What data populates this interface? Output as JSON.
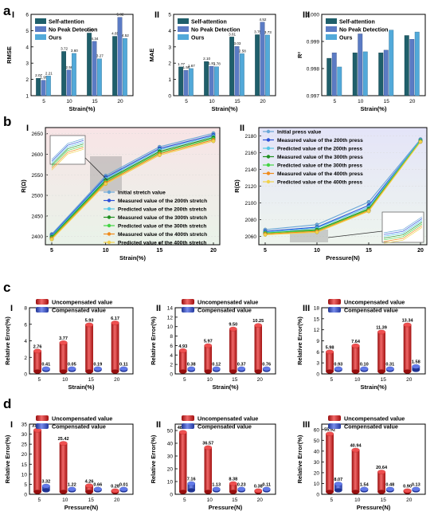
{
  "panel_letters": [
    "a",
    "b",
    "c",
    "d"
  ],
  "colors": {
    "self_attention": "#1f5f6b",
    "no_peak": "#5b7bc4",
    "ours": "#52a9d9",
    "uncomp": "#e81616",
    "comp": "#2f4ee0",
    "stretch_series": [
      "#6aa7d8",
      "#2b4fd8",
      "#55c7e6",
      "#1f8f1f",
      "#44d444",
      "#f08a1a",
      "#f2d24a"
    ],
    "b1_bg_top": "#f8e4e6",
    "b1_bg_bottom": "#e9f3e9",
    "b2_bg_top": "#e4e4f8",
    "b2_bg_bottom": "#eef5ee"
  },
  "chart_data": [
    {
      "id": "a1",
      "type": "bar",
      "roman": "I",
      "categories": [
        "5",
        "10",
        "15",
        "20"
      ],
      "series": [
        {
          "name": "Self-attention",
          "values": [
            2.07,
            3.72,
            4.85,
            4.65
          ]
        },
        {
          "name": "No Peak Detection",
          "values": [
            1.95,
            2.58,
            4.34,
            5.82
          ]
        },
        {
          "name": "Ours",
          "values": [
            2.21,
            3.6,
            3.27,
            4.52
          ]
        }
      ],
      "labels": [
        [
          "2.07",
          "1.95",
          "2.21"
        ],
        [
          "3.72",
          "2.58",
          "3.60"
        ],
        [
          "4.85",
          "4.34",
          "3.27"
        ],
        [
          "4.65",
          "5.82",
          "4.52"
        ]
      ],
      "xlabel": "Strain(%)",
      "ylabel": "RMSE",
      "ylim": [
        1,
        6
      ],
      "yticks": [
        "1",
        "2",
        "3",
        "4",
        "5",
        "6"
      ]
    },
    {
      "id": "a2",
      "type": "bar",
      "roman": "II",
      "categories": [
        "5",
        "10",
        "15",
        "20"
      ],
      "series": [
        {
          "name": "Self-attention",
          "values": [
            1.77,
            2.1,
            3.61,
            3.75
          ]
        },
        {
          "name": "No Peak Detection",
          "values": [
            1.56,
            1.81,
            3.03,
            4.52
          ]
        },
        {
          "name": "Ours",
          "values": [
            1.67,
            1.78,
            2.58,
            3.73
          ]
        }
      ],
      "labels": [
        [
          "1.77",
          "1.56",
          "1.67"
        ],
        [
          "2.10",
          "1.81",
          "1.78"
        ],
        [
          "3.61",
          "3.03",
          "2.58"
        ],
        [
          "3.75",
          "4.52",
          "3.73"
        ]
      ],
      "xlabel": "Strain(%)",
      "ylabel": "MAE",
      "ylim": [
        0,
        5
      ],
      "yticks": [
        "0",
        "1",
        "2",
        "3",
        "4",
        "5"
      ]
    },
    {
      "id": "a3",
      "type": "bar",
      "roman": "III",
      "categories": [
        "5",
        "10",
        "15",
        "20"
      ],
      "series": [
        {
          "name": "Self-attention",
          "values": [
            0.99838,
            0.99858,
            0.99858,
            0.99922
          ]
        },
        {
          "name": "No Peak Detection",
          "values": [
            0.99858,
            0.99928,
            0.99868,
            0.99908
          ]
        },
        {
          "name": "Ours",
          "values": [
            0.99806,
            0.99862,
            0.99942,
            0.99935
          ]
        }
      ],
      "xlabel": "Strain(%)",
      "ylabel": "R²",
      "ylim": [
        0.997,
        1.0
      ],
      "yticks": [
        "0.997",
        "0.998",
        "0.999",
        "1.000"
      ]
    },
    {
      "id": "b1",
      "type": "line",
      "roman": "I",
      "x": [
        5,
        10,
        15,
        20
      ],
      "xticks": [
        "5",
        "10",
        "15",
        "20"
      ],
      "series": [
        {
          "name": "Initial stretch value",
          "values": [
            2406,
            2548,
            2618,
            2651
          ]
        },
        {
          "name": "Measured value of the 200th stretch",
          "values": [
            2403,
            2544,
            2614,
            2647
          ]
        },
        {
          "name": "Predicted value of the 200th stretch",
          "values": [
            2401,
            2541,
            2611,
            2644
          ]
        },
        {
          "name": "Measured value of the 300th stretch",
          "values": [
            2399,
            2537,
            2607,
            2641
          ]
        },
        {
          "name": "Predicted value of the 300th stretch",
          "values": [
            2397,
            2534,
            2604,
            2638
          ]
        },
        {
          "name": "Measured value of the 400th stretch",
          "values": [
            2395,
            2531,
            2601,
            2635
          ]
        },
        {
          "name": "Predicted value of the 400th stretch",
          "values": [
            2393,
            2528,
            2598,
            2632
          ]
        }
      ],
      "xlabel": "Strain(%)",
      "ylabel": "R(Ω)",
      "ylim": [
        2380,
        2665
      ],
      "yticks": [
        2400,
        2450,
        2500,
        2550,
        2600,
        2650
      ]
    },
    {
      "id": "b2",
      "type": "line",
      "roman": "II",
      "x": [
        5,
        10,
        15,
        20
      ],
      "xticks": [
        "5",
        "10",
        "15",
        "20"
      ],
      "series": [
        {
          "name": "Initial press value",
          "values": [
            2068,
            2074,
            2101,
            2176
          ]
        },
        {
          "name": "Measured value of the 200th press",
          "values": [
            2066,
            2071,
            2097,
            2175
          ]
        },
        {
          "name": "Predicted value of the 200th press",
          "values": [
            2065,
            2070,
            2095,
            2175
          ]
        },
        {
          "name": "Measured value of the 300th press",
          "values": [
            2064,
            2068,
            2093,
            2174
          ]
        },
        {
          "name": "Predicted value of the 300th press",
          "values": [
            2064,
            2067,
            2092,
            2174
          ]
        },
        {
          "name": "Measured value of the 400th press",
          "values": [
            2063,
            2066,
            2091,
            2173
          ]
        },
        {
          "name": "Predicted value of the 400th press",
          "values": [
            2062,
            2065,
            2090,
            2173
          ]
        }
      ],
      "xlabel": "Pressure(N)",
      "ylabel": "R(Ω)",
      "ylim": [
        2050,
        2190
      ],
      "yticks": [
        2060,
        2080,
        2100,
        2120,
        2140,
        2160,
        2180
      ]
    },
    {
      "id": "c1",
      "type": "bar",
      "roman": "I",
      "categories": [
        "5",
        "10",
        "15",
        "20"
      ],
      "series": [
        {
          "name": "Uncompensated value",
          "values": [
            2.76,
            3.77,
            5.93,
            6.17
          ]
        },
        {
          "name": "Compensated value",
          "values": [
            0.41,
            0.05,
            0.19,
            0.11
          ]
        }
      ],
      "labels": [
        [
          "2.76",
          "0.41"
        ],
        [
          "3.77",
          "0.05"
        ],
        [
          "5.93",
          "0.19"
        ],
        [
          "6.17",
          "0.11"
        ]
      ],
      "xlabel": "Strain(%)",
      "ylabel": "Relative Error(%)",
      "ylim": [
        0,
        8
      ],
      "yticks": [
        "0",
        "2",
        "4",
        "6",
        "8"
      ]
    },
    {
      "id": "c2",
      "type": "bar",
      "roman": "II",
      "categories": [
        "5",
        "10",
        "15",
        "20"
      ],
      "series": [
        {
          "name": "Uncompensated value",
          "values": [
            4.93,
            5.97,
            9.5,
            10.25
          ]
        },
        {
          "name": "Compensated value",
          "values": [
            0.38,
            0.12,
            0.37,
            0.76
          ]
        }
      ],
      "labels": [
        [
          "4.93",
          "0.38"
        ],
        [
          "5.97",
          "0.12"
        ],
        [
          "9.50",
          "0.37"
        ],
        [
          "10.25",
          "0.76"
        ]
      ],
      "xlabel": "Strain(%)",
      "ylabel": "Relative Error(%)",
      "ylim": [
        0,
        14
      ],
      "yticks": [
        "0",
        "2",
        "4",
        "6",
        "8",
        "10",
        "12",
        "14"
      ]
    },
    {
      "id": "c3",
      "type": "bar",
      "roman": "III",
      "categories": [
        "5",
        "10",
        "15",
        "20"
      ],
      "series": [
        {
          "name": "Uncompensated value",
          "values": [
            5.98,
            7.64,
            11.39,
            13.34
          ]
        },
        {
          "name": "Compensated value",
          "values": [
            0.93,
            0.1,
            0.31,
            1.58
          ]
        }
      ],
      "labels": [
        [
          "5.98",
          "0.93"
        ],
        [
          "7.64",
          "0.10"
        ],
        [
          "11.39",
          "0.31"
        ],
        [
          "13.34",
          "1.58"
        ]
      ],
      "xlabel": "Strain(%)",
      "ylabel": "Relative Error(%)",
      "ylim": [
        0,
        18
      ],
      "yticks": [
        "0",
        "3",
        "6",
        "9",
        "12",
        "15",
        "18"
      ]
    },
    {
      "id": "d1",
      "type": "bar",
      "roman": "I",
      "categories": [
        "5",
        "10",
        "15",
        "20"
      ],
      "series": [
        {
          "name": "Uncompensated value",
          "values": [
            31.97,
            25.42,
            4.26,
            0.28
          ]
        },
        {
          "name": "Compensated value",
          "values": [
            3.32,
            1.22,
            0.66,
            0.01
          ]
        }
      ],
      "labels": [
        [
          "31.97",
          "3.32"
        ],
        [
          "25.42",
          "1.22"
        ],
        [
          "4.26",
          "0.66"
        ],
        [
          "0.28",
          "0.01"
        ]
      ],
      "xlabel": "Pressure(N)",
      "ylabel": "Relative Error(%)",
      "ylim": [
        0,
        35
      ],
      "yticks": [
        "0",
        "5",
        "10",
        "15",
        "20",
        "25",
        "30",
        "35"
      ]
    },
    {
      "id": "d2",
      "type": "bar",
      "roman": "II",
      "categories": [
        "5",
        "10",
        "15",
        "20"
      ],
      "series": [
        {
          "name": "Uncompensated value",
          "values": [
            48.63,
            36.57,
            8.38,
            0.38
          ]
        },
        {
          "name": "Compensated value",
          "values": [
            7.16,
            1.13,
            0.23,
            0.11
          ]
        }
      ],
      "labels": [
        [
          "48.63",
          "7.16"
        ],
        [
          "36.57",
          "1.13"
        ],
        [
          "8.38",
          "0.23"
        ],
        [
          "0.38",
          "0.11"
        ]
      ],
      "xlabel": "Pressure(N)",
      "ylabel": "Relative Error(%)",
      "ylim": [
        0,
        55
      ],
      "yticks": [
        "0",
        "10",
        "20",
        "30",
        "40",
        "50"
      ]
    },
    {
      "id": "d3",
      "type": "bar",
      "roman": "III",
      "categories": [
        "5",
        "10",
        "15",
        "20"
      ],
      "series": [
        {
          "name": "Uncompensated value",
          "values": [
            55.92,
            40.94,
            20.64,
            0.9
          ]
        },
        {
          "name": "Compensated value",
          "values": [
            8.07,
            1.54,
            0.48,
            0.13
          ]
        }
      ],
      "labels": [
        [
          "55.92",
          "8.07"
        ],
        [
          "40.94",
          "1.54"
        ],
        [
          "20.64",
          "0.48"
        ],
        [
          "0.90",
          "0.13"
        ]
      ],
      "xlabel": "Pressure(N)",
      "ylabel": "Relative Error(%)",
      "ylim": [
        0,
        65
      ],
      "yticks": [
        "0",
        "10",
        "20",
        "30",
        "40",
        "50",
        "60"
      ]
    }
  ]
}
